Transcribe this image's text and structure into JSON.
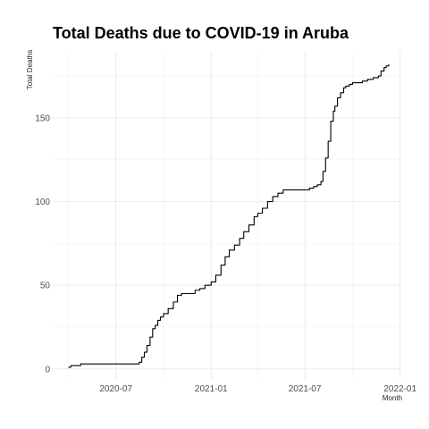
{
  "chart_data": {
    "type": "line",
    "title": "Total Deaths due to COVID-19 in Aruba",
    "xlabel": "Month",
    "ylabel": "Total Deaths",
    "xlim": [
      "2020-03-01",
      "2022-01-05"
    ],
    "ylim": [
      -6,
      190
    ],
    "grid": true,
    "x_ticks": [
      {
        "date": "2020-07-01",
        "label": "2020-07"
      },
      {
        "date": "2021-01-01",
        "label": "2021-01"
      },
      {
        "date": "2021-07-01",
        "label": "2021-07"
      },
      {
        "date": "2022-01-01",
        "label": "2022-01"
      }
    ],
    "y_ticks": [
      0,
      50,
      100,
      150
    ],
    "series": [
      {
        "color": "#000000",
        "x": [
          "2020-03-31",
          "2020-04-05",
          "2020-04-20",
          "2020-04-24",
          "2020-05-15",
          "2020-06-15",
          "2020-07-15",
          "2020-08-10",
          "2020-08-15",
          "2020-08-20",
          "2020-08-25",
          "2020-08-30",
          "2020-09-05",
          "2020-09-10",
          "2020-09-15",
          "2020-09-20",
          "2020-09-25",
          "2020-10-01",
          "2020-10-10",
          "2020-10-20",
          "2020-10-28",
          "2020-11-05",
          "2020-11-20",
          "2020-12-01",
          "2020-12-10",
          "2020-12-20",
          "2021-01-01",
          "2021-01-10",
          "2021-01-20",
          "2021-01-28",
          "2021-02-05",
          "2021-02-15",
          "2021-02-25",
          "2021-03-05",
          "2021-03-15",
          "2021-03-25",
          "2021-04-01",
          "2021-04-10",
          "2021-04-20",
          "2021-04-30",
          "2021-05-10",
          "2021-05-20",
          "2021-05-28",
          "2021-06-05",
          "2021-06-15",
          "2021-06-25",
          "2021-07-05",
          "2021-07-10",
          "2021-07-18",
          "2021-07-25",
          "2021-08-01",
          "2021-08-05",
          "2021-08-10",
          "2021-08-15",
          "2021-08-20",
          "2021-08-25",
          "2021-08-28",
          "2021-09-02",
          "2021-09-08",
          "2021-09-14",
          "2021-09-18",
          "2021-09-25",
          "2021-10-01",
          "2021-10-10",
          "2021-10-20",
          "2021-10-30",
          "2021-11-10",
          "2021-11-20",
          "2021-11-25",
          "2021-12-01",
          "2021-12-05",
          "2021-12-10"
        ],
        "y": [
          1,
          2,
          2,
          3,
          3,
          3,
          3,
          3,
          4,
          7,
          10,
          14,
          19,
          24,
          26,
          29,
          31,
          33,
          36,
          40,
          44,
          45,
          45,
          47,
          48,
          50,
          52,
          56,
          62,
          67,
          71,
          74,
          78,
          82,
          86,
          91,
          93,
          96,
          100,
          103,
          105,
          107,
          107,
          107,
          107,
          107,
          107,
          108,
          109,
          110,
          112,
          118,
          126,
          136,
          148,
          154,
          157,
          162,
          165,
          168,
          169,
          170,
          171,
          171,
          172,
          173,
          174,
          175,
          178,
          180,
          181,
          182
        ]
      }
    ]
  }
}
